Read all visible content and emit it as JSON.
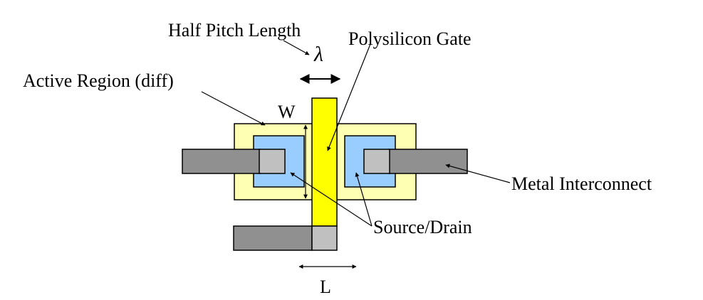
{
  "labels": {
    "half_pitch": "Half Pitch Length",
    "lambda": "λ",
    "poly_gate": "Polysilicon Gate",
    "active_region": "Active Region (diff)",
    "width": "W",
    "metal": "Metal Interconnect",
    "source_drain": "Source/Drain",
    "length": "L"
  },
  "colors": {
    "active": "#ffffb3",
    "diffusion": "#99ccff",
    "poly": "#ffff00",
    "metal": "#909090",
    "contact": "#c0c0c0",
    "stroke": "#000000"
  }
}
